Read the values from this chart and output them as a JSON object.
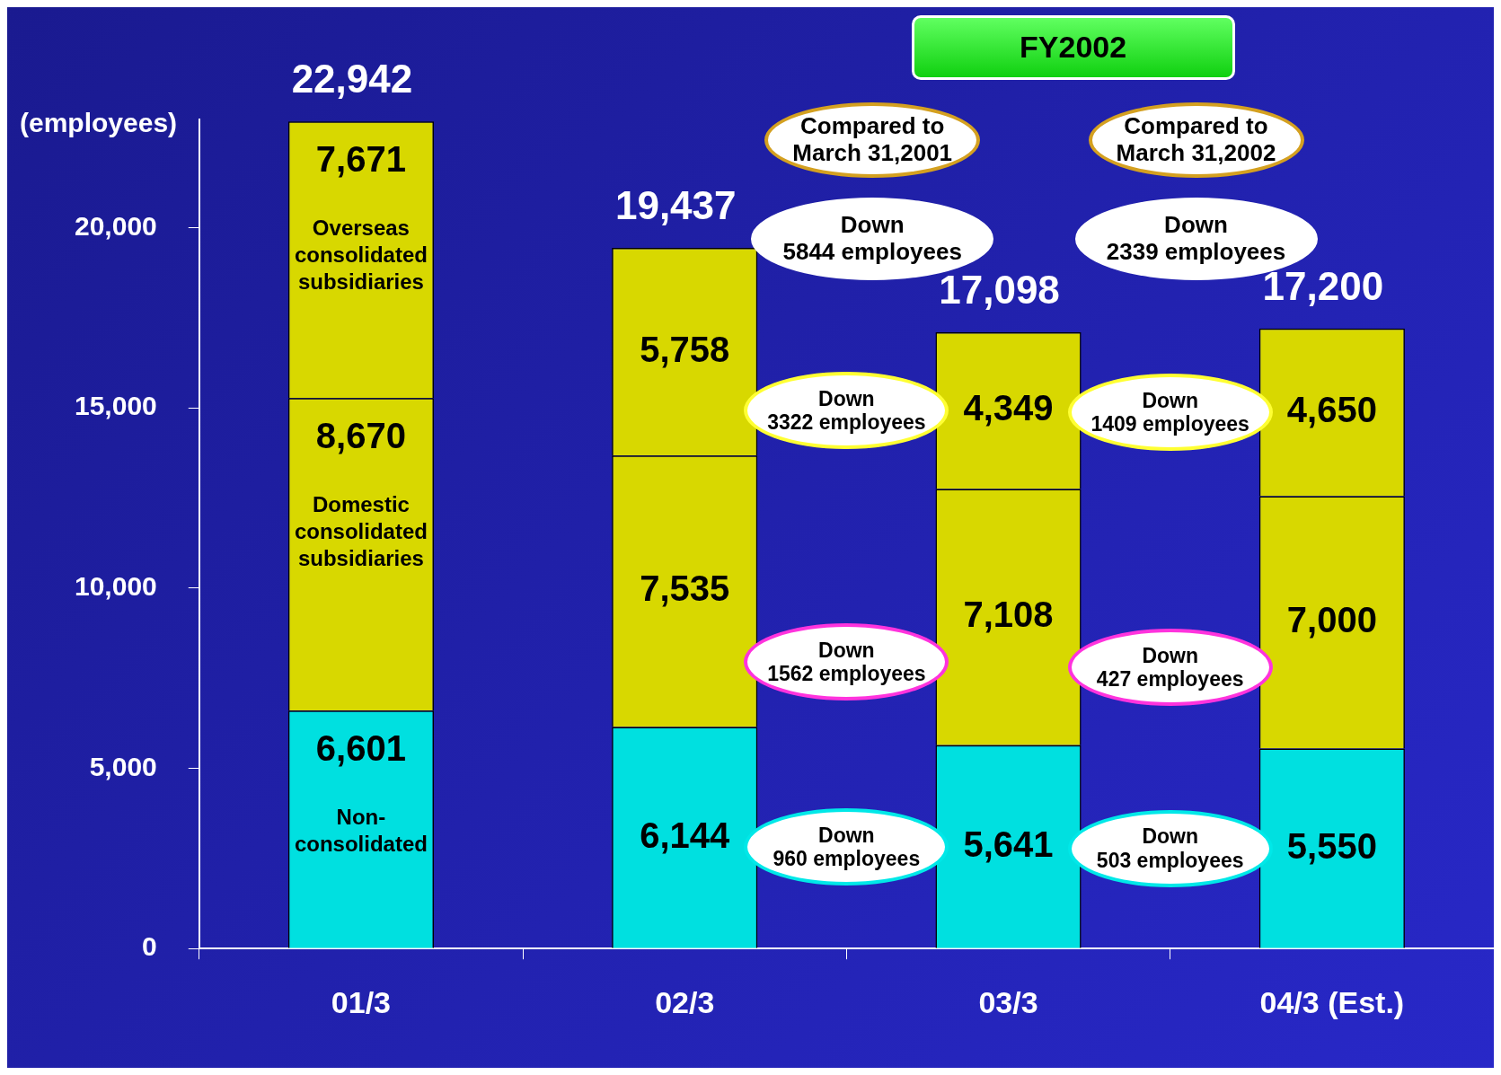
{
  "chart_data": {
    "type": "bar",
    "stacked": true,
    "ylabel": "(employees)",
    "categories": [
      "01/3",
      "02/3",
      "03/3",
      "04/3 (Est.)"
    ],
    "series": [
      {
        "name": "Non-consolidated",
        "color": "#00e0e0",
        "values": [
          6601,
          6144,
          5641,
          5550
        ],
        "value_labels": [
          "6,601",
          "6,144",
          "5,641",
          "5,550"
        ]
      },
      {
        "name": "Domestic consolidated subsidiaries",
        "color": "#d8d800",
        "values": [
          8670,
          7535,
          7108,
          7000
        ],
        "value_labels": [
          "8,670",
          "7,535",
          "7,108",
          "7,000"
        ]
      },
      {
        "name": "Overseas consolidated subsidiaries",
        "color": "#d8d800",
        "values": [
          7671,
          5758,
          4349,
          4650
        ],
        "value_labels": [
          "7,671",
          "5,758",
          "4,349",
          "4,650"
        ]
      }
    ],
    "totals": [
      "22,942",
      "19,437",
      "17,098",
      "17,200"
    ],
    "ylim": [
      0,
      23000
    ],
    "yticks": [
      0,
      {
        "value": 5000,
        "label": "5,000"
      },
      {
        "value": 10000,
        "label": "10,000"
      },
      {
        "value": 15000,
        "label": "15,000"
      },
      {
        "value": 20000,
        "label": "20,000"
      }
    ],
    "annotations": [
      "FY2002",
      "Compared to\nMarch 31,2001",
      "Compared to\nMarch 31,2002",
      "Down\n5844 employees",
      "Down\n2339 employees",
      "Down\n960 employees",
      "Down\n503 employees",
      "Down\n1562 employees",
      "Down\n427 employees",
      "Down\n3322 employees",
      "Down\n1409 employees"
    ]
  }
}
